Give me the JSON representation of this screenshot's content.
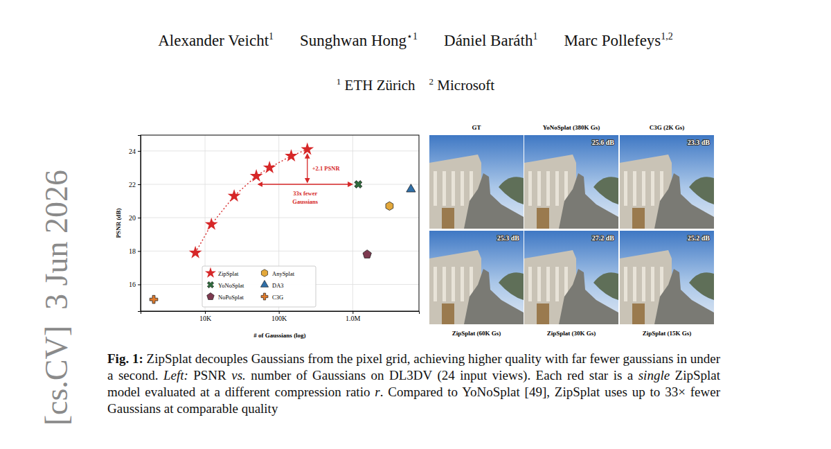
{
  "authors": [
    {
      "name": "Alexander Veicht",
      "affil": "1"
    },
    {
      "name": "Sunghwan Hong",
      "affil": "⋆1"
    },
    {
      "name": "Dániel Baráth",
      "affil": "1"
    },
    {
      "name": "Marc Pollefeys",
      "affil": "1,2"
    }
  ],
  "affiliations": [
    {
      "mark": "1",
      "name": "ETH Zürich"
    },
    {
      "mark": "2",
      "name": "Microsoft"
    }
  ],
  "side_stamp": "[cs.CV]  3 Jun 2026",
  "chart_data": {
    "type": "scatter",
    "x_label": "# of Gaussians (log)",
    "y_label": "PSNR (dB)",
    "log": "x",
    "grid": true,
    "legend": "lower center",
    "xlim": [
      1340,
      7900000
    ],
    "ylim": [
      14.4,
      24.95
    ],
    "xticks": [
      {
        "value": 10000,
        "label": "10K"
      },
      {
        "value": 100000,
        "label": "100K"
      },
      {
        "value": 1000000,
        "label": "1.0M"
      }
    ],
    "yticks": [
      16,
      18,
      20,
      22,
      24
    ],
    "series": [
      {
        "name": "ZipSplat",
        "color": "#d62728",
        "marker": "star",
        "line_style": "dotted",
        "x": [
          7400,
          12200,
          24800,
          49500,
          74700,
          147000,
          243000
        ],
        "values": [
          17.9,
          19.6,
          21.3,
          22.5,
          23.0,
          23.7,
          24.1
        ]
      },
      {
        "name": "AnySplat",
        "color": "#e3a83b",
        "marker": "hexagon",
        "x": [
          3150000
        ],
        "values": [
          20.7
        ]
      },
      {
        "name": "YoNoSplat",
        "color": "#2f6b3c",
        "marker": "x",
        "x": [
          1190000
        ],
        "values": [
          22.0
        ]
      },
      {
        "name": "DA3",
        "color": "#2f6fa8",
        "marker": "triangle",
        "x": [
          6150000
        ],
        "values": [
          21.7
        ]
      },
      {
        "name": "NoPoSplat",
        "color": "#7d3a50",
        "marker": "pentagon",
        "x": [
          1570000
        ],
        "values": [
          17.8
        ]
      },
      {
        "name": "C3G",
        "color": "#e07b2c",
        "marker": "plus",
        "x": [
          2020
        ],
        "values": [
          15.1
        ]
      }
    ],
    "annotations": [
      {
        "text": "+2.1 PSNR"
      },
      {
        "text": [
          "33x fewer",
          "Gaussians"
        ]
      }
    ]
  },
  "image_grid": {
    "header": [
      "GT",
      "YoNoSplat (380K Gs)",
      "C3G (2K Gs)"
    ],
    "footer": [
      "ZipSplat (60K Gs)",
      "ZipSplat (30K Gs)",
      "ZipSplat (15K Gs)"
    ],
    "cells": [
      [
        null,
        "25.6 dB",
        "23.3 dB"
      ],
      [
        "25.3 dB",
        "27.2 dB",
        "25.2 dB"
      ]
    ]
  },
  "caption": [
    {
      "text": "Fig. 1:",
      "style": "bold"
    },
    {
      "text": " ZipSplat decouples Gaussians from the pixel grid, achieving higher quality with far fewer gaussians in under a second. ",
      "style": "normal"
    },
    {
      "text": "Left:",
      "style": "italic"
    },
    {
      "text": " PSNR ",
      "style": "normal"
    },
    {
      "text": "vs.",
      "style": "italic"
    },
    {
      "text": " number of Gaussians on DL3DV (24 input views). Each red star is a ",
      "style": "normal"
    },
    {
      "text": "single",
      "style": "italic"
    },
    {
      "text": " ZipSplat model evaluated at a different compression ratio ",
      "style": "normal"
    },
    {
      "text": "r",
      "style": "italic"
    },
    {
      "text": ". Compared to YoNoSplat [49], ZipSplat uses up to 33× fewer Gaussians at comparable quality",
      "style": "normal"
    }
  ]
}
